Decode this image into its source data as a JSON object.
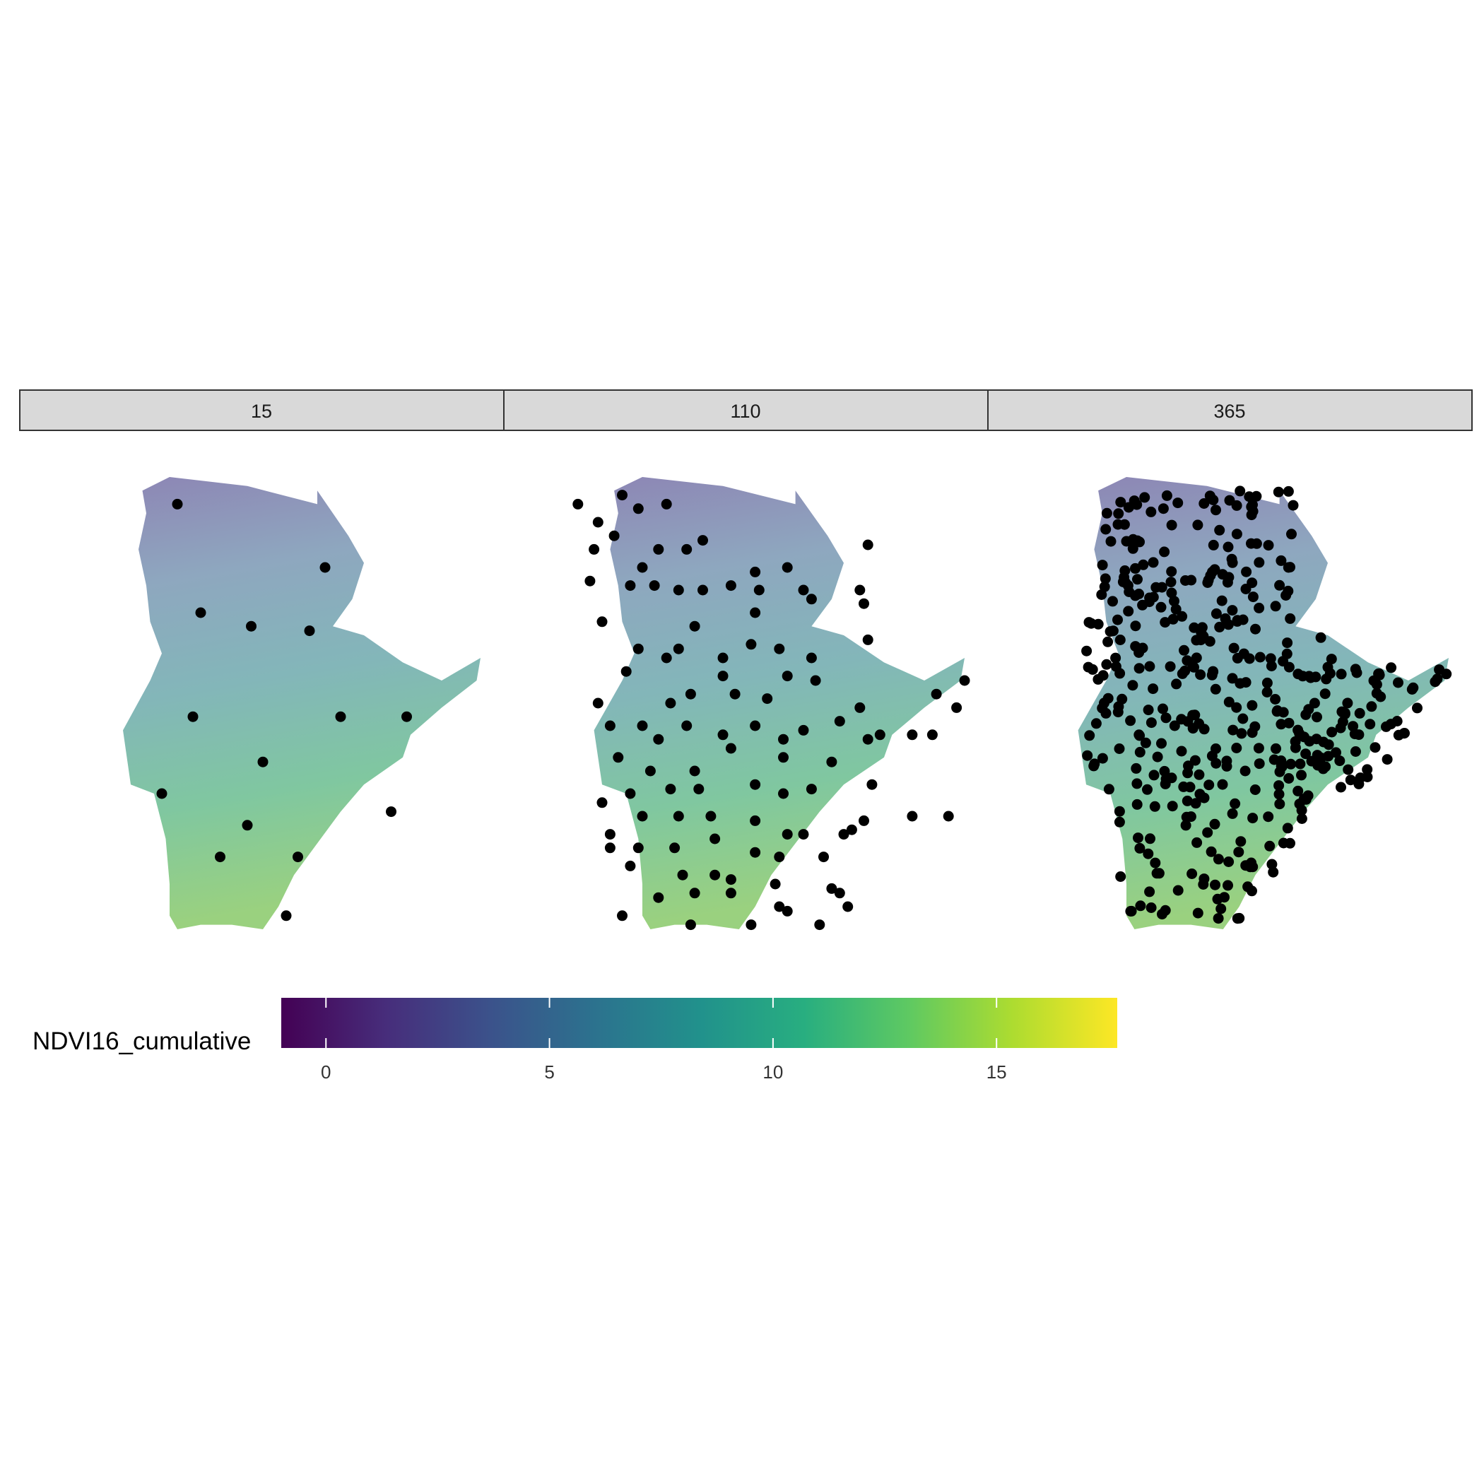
{
  "chart_data": {
    "type": "scatter",
    "title": "",
    "panels": [
      {
        "label": "15",
        "points": [
          [
            0.22,
            0.06
          ],
          [
            0.28,
            0.3
          ],
          [
            0.41,
            0.33
          ],
          [
            0.56,
            0.34
          ],
          [
            0.6,
            0.2
          ],
          [
            0.26,
            0.53
          ],
          [
            0.44,
            0.63
          ],
          [
            0.64,
            0.53
          ],
          [
            0.81,
            0.53
          ],
          [
            0.18,
            0.7
          ],
          [
            0.4,
            0.77
          ],
          [
            0.33,
            0.84
          ],
          [
            0.53,
            0.84
          ],
          [
            0.77,
            0.74
          ],
          [
            0.5,
            0.97
          ]
        ]
      },
      {
        "label": "110",
        "points": [
          [
            0.04,
            0.06
          ],
          [
            0.15,
            0.04
          ],
          [
            0.19,
            0.07
          ],
          [
            0.26,
            0.06
          ],
          [
            0.09,
            0.1
          ],
          [
            0.13,
            0.13
          ],
          [
            0.24,
            0.16
          ],
          [
            0.35,
            0.14
          ],
          [
            0.31,
            0.16
          ],
          [
            0.08,
            0.16
          ],
          [
            0.2,
            0.2
          ],
          [
            0.07,
            0.23
          ],
          [
            0.17,
            0.24
          ],
          [
            0.23,
            0.24
          ],
          [
            0.29,
            0.25
          ],
          [
            0.35,
            0.25
          ],
          [
            0.42,
            0.24
          ],
          [
            0.48,
            0.21
          ],
          [
            0.56,
            0.2
          ],
          [
            0.49,
            0.25
          ],
          [
            0.6,
            0.25
          ],
          [
            0.62,
            0.27
          ],
          [
            0.76,
            0.15
          ],
          [
            0.74,
            0.25
          ],
          [
            0.75,
            0.28
          ],
          [
            0.1,
            0.32
          ],
          [
            0.33,
            0.33
          ],
          [
            0.48,
            0.3
          ],
          [
            0.76,
            0.36
          ],
          [
            0.19,
            0.38
          ],
          [
            0.29,
            0.38
          ],
          [
            0.4,
            0.4
          ],
          [
            0.47,
            0.37
          ],
          [
            0.54,
            0.38
          ],
          [
            0.26,
            0.4
          ],
          [
            0.62,
            0.4
          ],
          [
            0.16,
            0.43
          ],
          [
            0.4,
            0.44
          ],
          [
            0.56,
            0.44
          ],
          [
            0.63,
            0.45
          ],
          [
            0.32,
            0.48
          ],
          [
            0.43,
            0.48
          ],
          [
            0.51,
            0.49
          ],
          [
            0.09,
            0.5
          ],
          [
            0.27,
            0.5
          ],
          [
            0.12,
            0.55
          ],
          [
            0.2,
            0.55
          ],
          [
            0.31,
            0.55
          ],
          [
            0.48,
            0.55
          ],
          [
            0.6,
            0.56
          ],
          [
            0.74,
            0.51
          ],
          [
            0.69,
            0.54
          ],
          [
            0.76,
            0.58
          ],
          [
            0.87,
            0.57
          ],
          [
            0.92,
            0.57
          ],
          [
            0.98,
            0.51
          ],
          [
            1.0,
            0.45
          ],
          [
            0.93,
            0.48
          ],
          [
            0.24,
            0.58
          ],
          [
            0.4,
            0.57
          ],
          [
            0.55,
            0.58
          ],
          [
            0.79,
            0.57
          ],
          [
            0.14,
            0.62
          ],
          [
            0.22,
            0.65
          ],
          [
            0.33,
            0.65
          ],
          [
            0.42,
            0.6
          ],
          [
            0.55,
            0.62
          ],
          [
            0.67,
            0.63
          ],
          [
            0.17,
            0.7
          ],
          [
            0.27,
            0.69
          ],
          [
            0.34,
            0.69
          ],
          [
            0.48,
            0.68
          ],
          [
            0.62,
            0.69
          ],
          [
            0.77,
            0.68
          ],
          [
            0.55,
            0.7
          ],
          [
            0.1,
            0.72
          ],
          [
            0.2,
            0.75
          ],
          [
            0.29,
            0.75
          ],
          [
            0.37,
            0.75
          ],
          [
            0.48,
            0.76
          ],
          [
            0.56,
            0.79
          ],
          [
            0.6,
            0.79
          ],
          [
            0.7,
            0.79
          ],
          [
            0.72,
            0.78
          ],
          [
            0.75,
            0.76
          ],
          [
            0.87,
            0.75
          ],
          [
            0.96,
            0.75
          ],
          [
            0.12,
            0.79
          ],
          [
            0.12,
            0.82
          ],
          [
            0.19,
            0.82
          ],
          [
            0.28,
            0.82
          ],
          [
            0.38,
            0.8
          ],
          [
            0.48,
            0.83
          ],
          [
            0.54,
            0.84
          ],
          [
            0.65,
            0.84
          ],
          [
            0.17,
            0.86
          ],
          [
            0.3,
            0.88
          ],
          [
            0.38,
            0.88
          ],
          [
            0.42,
            0.89
          ],
          [
            0.53,
            0.9
          ],
          [
            0.67,
            0.91
          ],
          [
            0.24,
            0.93
          ],
          [
            0.33,
            0.92
          ],
          [
            0.42,
            0.92
          ],
          [
            0.54,
            0.95
          ],
          [
            0.69,
            0.92
          ],
          [
            0.71,
            0.95
          ],
          [
            0.15,
            0.97
          ],
          [
            0.32,
            0.99
          ],
          [
            0.47,
            0.99
          ],
          [
            0.56,
            0.96
          ],
          [
            0.64,
            0.99
          ]
        ]
      },
      {
        "label": "365",
        "point_count": 421
      }
    ],
    "legend": {
      "title": "NDVI16_cumulative",
      "position": "bottom",
      "colormap": "viridis",
      "range": [
        -1,
        17.7
      ],
      "ticks": [
        0,
        5,
        10,
        15
      ]
    },
    "grid": false,
    "axes_visible": false
  },
  "colors": {
    "strip_fill": "#d9d9d9",
    "strip_border": "#333333",
    "points": "#000000",
    "viridis": [
      "#440154",
      "#472d7b",
      "#3b528b",
      "#2c728e",
      "#21918c",
      "#28ae80",
      "#5ec962",
      "#addc30",
      "#fde725"
    ]
  }
}
